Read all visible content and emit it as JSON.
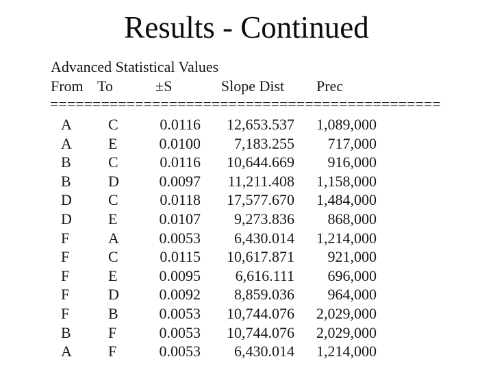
{
  "slide_title": "Results - Continued",
  "report": {
    "caption": "Advanced Statistical Values",
    "columns": [
      "From",
      "To",
      "±S",
      "Slope Dist",
      "Prec"
    ],
    "separator": "==============================================",
    "rows": [
      [
        "A",
        "C",
        "0.0116",
        "12,653.537",
        "1,089,000"
      ],
      [
        "A",
        "E",
        "0.0100",
        "7,183.255",
        "717,000"
      ],
      [
        "B",
        "C",
        "0.0116",
        "10,644.669",
        "916,000"
      ],
      [
        "B",
        "D",
        "0.0097",
        "11,211.408",
        "1,158,000"
      ],
      [
        "D",
        "C",
        "0.0118",
        "17,577.670",
        "1,484,000"
      ],
      [
        "D",
        "E",
        "0.0107",
        "9,273.836",
        "868,000"
      ],
      [
        "F",
        "A",
        "0.0053",
        "6,430.014",
        "1,214,000"
      ],
      [
        "F",
        "C",
        "0.0115",
        "10,617.871",
        "921,000"
      ],
      [
        "F",
        "E",
        "0.0095",
        "6,616.111",
        "696,000"
      ],
      [
        "F",
        "D",
        "0.0092",
        "8,859.036",
        "964,000"
      ],
      [
        "F",
        "B",
        "0.0053",
        "10,744.076",
        "2,029,000"
      ],
      [
        "B",
        "F",
        "0.0053",
        "10,744.076",
        "2,029,000"
      ],
      [
        "A",
        "F",
        "0.0053",
        "6,430.014",
        "1,214,000"
      ]
    ]
  }
}
